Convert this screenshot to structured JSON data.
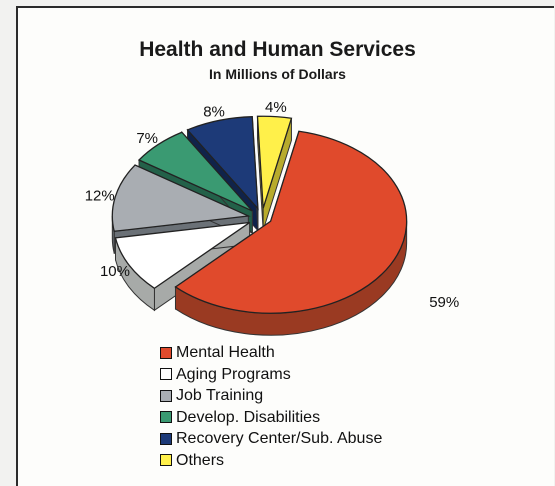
{
  "chart_data": {
    "type": "pie",
    "title": "Health and Human Services",
    "subtitle": "In Millions of Dollars",
    "style": "3d-exploded",
    "legend_position": "bottom",
    "slices": [
      {
        "label": "Mental Health",
        "value": 59,
        "value_label": "59%",
        "color": "#e04a2c",
        "side_color": "#9a3a22"
      },
      {
        "label": "Aging Programs",
        "value": 10,
        "value_label": "10%",
        "color": "#ffffff",
        "side_color": "#a7aaa8"
      },
      {
        "label": "Job Training",
        "value": 12,
        "value_label": "12%",
        "color": "#a9adb2",
        "side_color": "#6b7177"
      },
      {
        "label": "Develop. Disabilities",
        "value": 7,
        "value_label": "7%",
        "color": "#3a9a72",
        "side_color": "#236149"
      },
      {
        "label": "Recovery Center/Sub. Abuse",
        "value": 8,
        "value_label": "8%",
        "color": "#1d3a78",
        "side_color": "#10234a"
      },
      {
        "label": "Others",
        "value": 4,
        "value_label": "4%",
        "color": "#fff04a",
        "side_color": "#b8ab2c"
      }
    ]
  }
}
